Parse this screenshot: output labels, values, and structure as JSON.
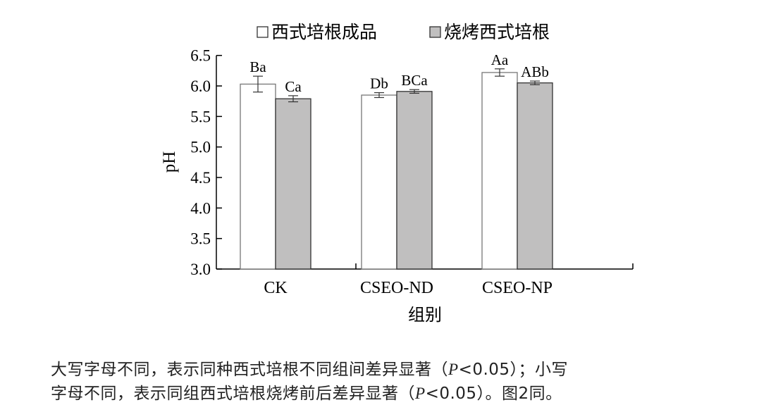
{
  "chart_data": {
    "type": "bar",
    "categories": [
      "CK",
      "CSEO-ND",
      "CSEO-NP"
    ],
    "series": [
      {
        "name": "西式培根成品",
        "values": [
          6.03,
          5.85,
          6.22
        ],
        "errors": [
          0.13,
          0.04,
          0.06
        ],
        "labels": [
          "Ba",
          "Db",
          "Aa"
        ],
        "color": "#ffffff"
      },
      {
        "name": "烧烤西式培根",
        "values": [
          5.79,
          5.91,
          6.05
        ],
        "errors": [
          0.05,
          0.03,
          0.03
        ],
        "labels": [
          "Ca",
          "BCa",
          "ABb"
        ],
        "color": "#c0bfbf"
      }
    ],
    "xlabel": "组别",
    "ylabel": "pH",
    "ylim": [
      3.0,
      6.5
    ],
    "yticks": [
      "3.0",
      "3.5",
      "4.0",
      "4.5",
      "5.0",
      "5.5",
      "6.0",
      "6.5"
    ],
    "legend_placement": "top",
    "grid": false
  },
  "caption": {
    "line1_a": "大写字母不同，表示同种西式培根不同组间差异显著（",
    "p": "P",
    "line1_b": "<0.05）；小写",
    "line2_a": "字母不同，表示同组西式培根烧烤前后差异显著（",
    "line2_b": "<0.05）。图2同。"
  }
}
